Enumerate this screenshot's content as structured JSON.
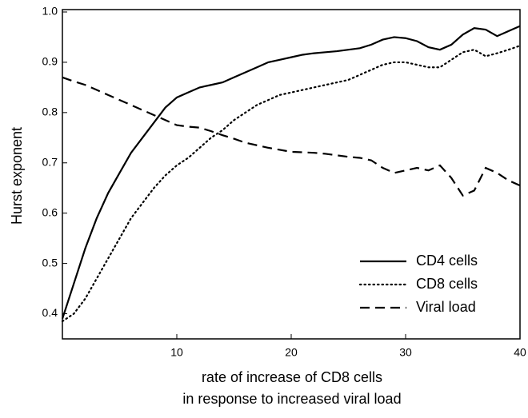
{
  "chart_data": {
    "type": "line",
    "xlabel": [
      "rate of increase of CD8 cells",
      "in response to increased viral load"
    ],
    "ylabel": "Hurst exponent",
    "x": [
      0,
      1,
      2,
      3,
      4,
      5,
      6,
      7,
      8,
      9,
      10,
      11,
      12,
      13,
      14,
      15,
      16,
      17,
      18,
      19,
      20,
      21,
      22,
      23,
      24,
      25,
      26,
      27,
      28,
      29,
      30,
      31,
      32,
      33,
      34,
      35,
      36,
      37,
      38,
      39,
      40
    ],
    "series": [
      {
        "name": "CD4 cells",
        "color": "#000000",
        "line_style": "solid",
        "values": [
          0.39,
          0.46,
          0.53,
          0.59,
          0.64,
          0.68,
          0.72,
          0.75,
          0.78,
          0.81,
          0.83,
          0.84,
          0.85,
          0.855,
          0.86,
          0.87,
          0.88,
          0.89,
          0.9,
          0.905,
          0.91,
          0.915,
          0.918,
          0.92,
          0.922,
          0.925,
          0.928,
          0.935,
          0.945,
          0.95,
          0.948,
          0.942,
          0.93,
          0.925,
          0.935,
          0.955,
          0.968,
          0.965,
          0.952,
          0.962,
          0.972
        ]
      },
      {
        "name": "CD8 cells",
        "color": "#000000",
        "line_style": "dotted",
        "values": [
          0.385,
          0.4,
          0.43,
          0.47,
          0.51,
          0.55,
          0.59,
          0.62,
          0.65,
          0.675,
          0.695,
          0.71,
          0.73,
          0.75,
          0.765,
          0.785,
          0.8,
          0.815,
          0.825,
          0.835,
          0.84,
          0.845,
          0.85,
          0.855,
          0.86,
          0.865,
          0.875,
          0.885,
          0.895,
          0.9,
          0.9,
          0.895,
          0.89,
          0.89,
          0.905,
          0.92,
          0.925,
          0.912,
          0.918,
          0.925,
          0.933
        ]
      },
      {
        "name": "Viral load",
        "color": "#000000",
        "line_style": "dashed",
        "values": [
          0.87,
          0.862,
          0.855,
          0.845,
          0.835,
          0.825,
          0.815,
          0.805,
          0.795,
          0.785,
          0.775,
          0.772,
          0.77,
          0.763,
          0.755,
          0.748,
          0.74,
          0.735,
          0.73,
          0.726,
          0.722,
          0.721,
          0.72,
          0.718,
          0.715,
          0.712,
          0.71,
          0.705,
          0.69,
          0.68,
          0.685,
          0.69,
          0.685,
          0.695,
          0.67,
          0.635,
          0.645,
          0.69,
          0.68,
          0.665,
          0.655
        ]
      }
    ],
    "xlim": [
      0,
      40
    ],
    "xticks": [
      10,
      20,
      30,
      40
    ],
    "ylim": [
      0.35,
      1.0
    ],
    "yticks": [
      0.4,
      0.5,
      0.6,
      0.7,
      0.8,
      0.9,
      {
        "value": 1.0,
        "label": "1.0"
      }
    ],
    "legend": "lower right"
  }
}
